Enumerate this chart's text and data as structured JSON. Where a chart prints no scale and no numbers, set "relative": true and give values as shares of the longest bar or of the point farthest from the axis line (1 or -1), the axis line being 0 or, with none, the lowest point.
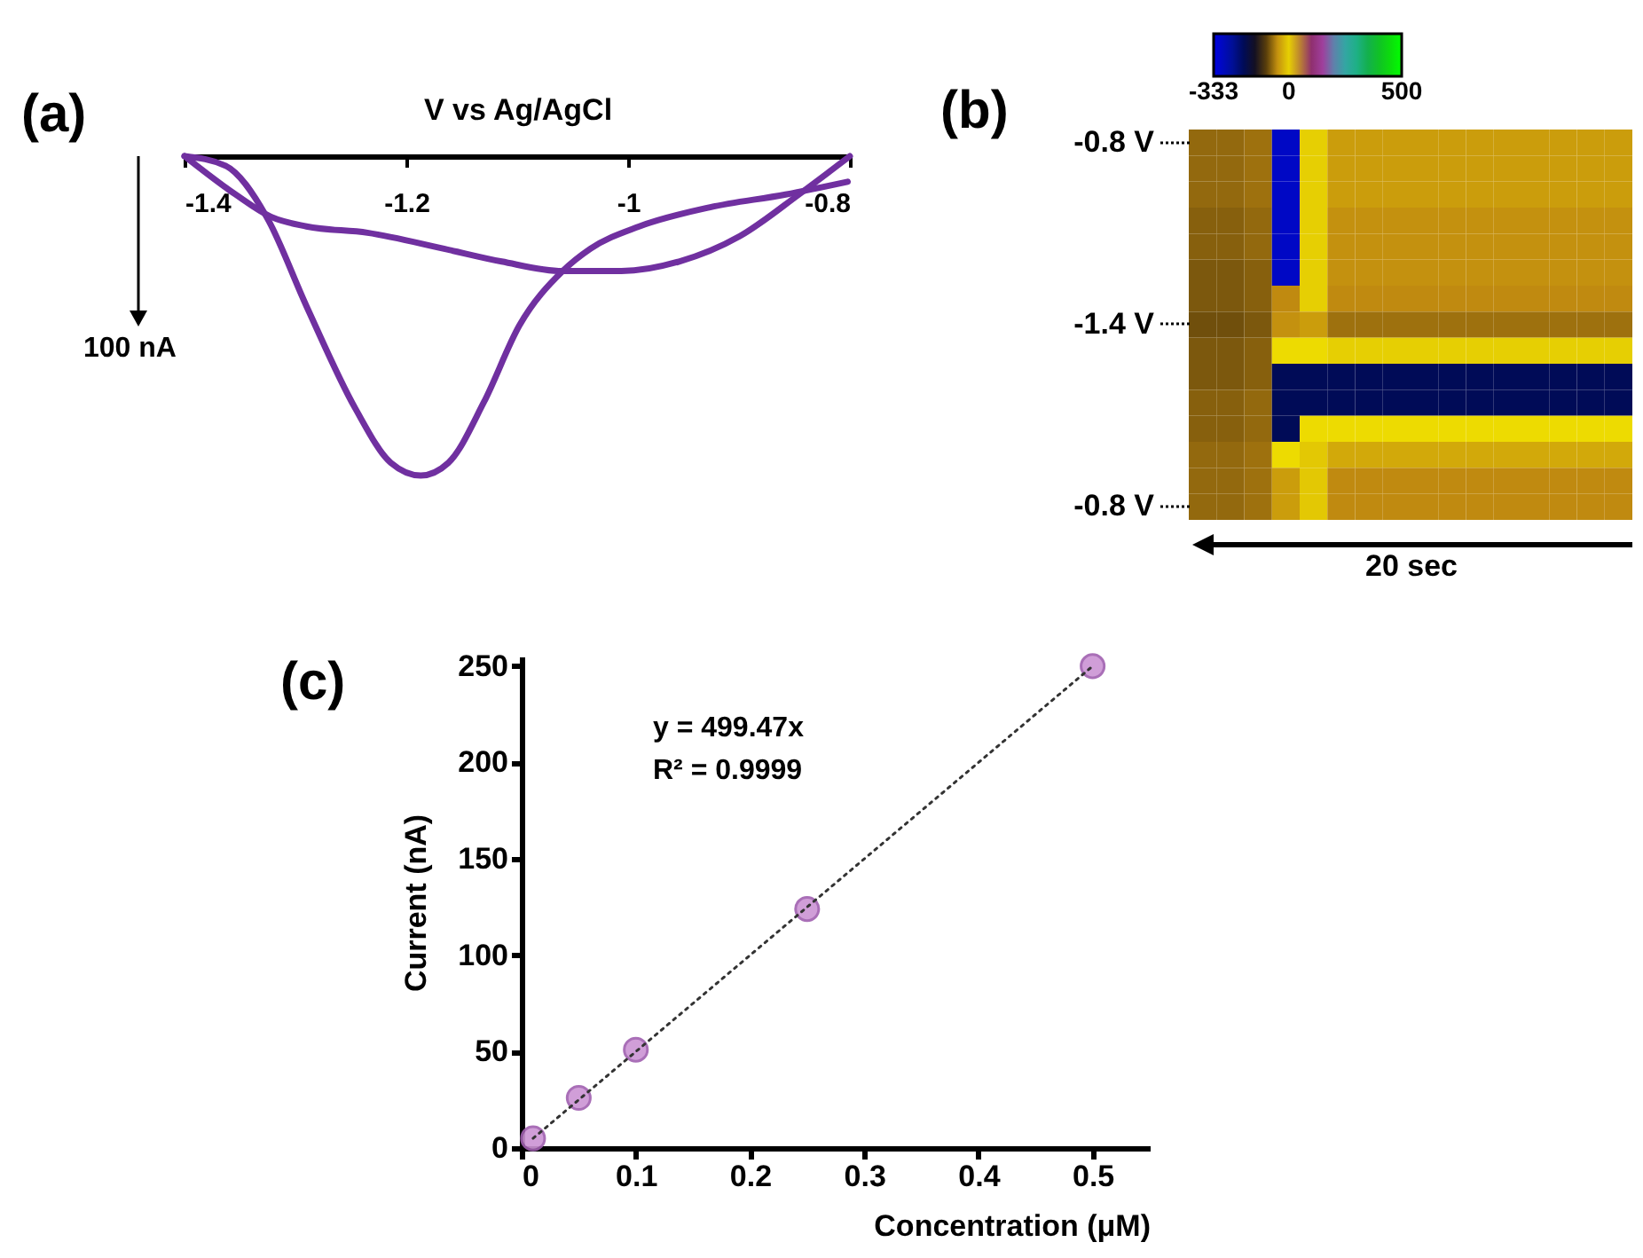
{
  "chart_data": [
    {
      "type": "line",
      "title": "(a)",
      "xlabel": "V vs Ag/AgCl",
      "relative": true,
      "xlim": [
        -1.4,
        -0.8
      ],
      "xticks": [
        -1.4,
        -1.2,
        -1,
        -0.8
      ],
      "annotations": [
        "100 nA"
      ],
      "series": [
        {
          "color": "#7030a0",
          "x": [
            -1.4,
            -1.363,
            -1.326,
            -1.29,
            -1.246,
            -1.214,
            -1.187,
            -1.162,
            -1.13,
            -1.098,
            -1.059,
            -1.034,
            -0.99,
            -0.926,
            -0.858,
            -0.802
          ],
          "values": [
            0,
            -0.03,
            -0.19,
            -0.47,
            -0.79,
            -0.96,
            -1,
            -0.96,
            -0.77,
            -0.53,
            -0.36,
            -0.29,
            -0.22,
            -0.16,
            -0.12,
            -0.08
          ]
        },
        {
          "color": "#7030a0",
          "x": [
            -1.4,
            -1.354,
            -1.322,
            -1.29,
            -1.235,
            -1.166,
            -1.114,
            -1.059,
            -1.006,
            -0.954,
            -0.899,
            -0.846,
            -0.819,
            -0.8
          ],
          "values": [
            0,
            -0.12,
            -0.19,
            -0.22,
            -0.24,
            -0.29,
            -0.33,
            -0.36,
            -0.36,
            -0.33,
            -0.25,
            -0.12,
            -0.05,
            0
          ]
        }
      ]
    },
    {
      "type": "heatmap",
      "title": "(b)",
      "xlabel": "20 sec",
      "clim": [
        -333,
        500
      ],
      "cticks": [
        -333,
        0,
        500
      ],
      "categories": [
        null,
        null,
        null,
        null,
        null,
        null,
        null,
        null,
        null,
        null,
        null,
        null,
        null,
        null,
        null,
        null
      ],
      "y_categories": [
        "-0.8 V",
        null,
        null,
        null,
        null,
        null,
        null,
        "-1.4 V",
        null,
        null,
        null,
        null,
        null,
        null,
        "-0.8 V"
      ],
      "cells": [
        [
          -75,
          -75,
          -70,
          -300,
          0,
          -40,
          -40,
          -40,
          -40,
          -40,
          -40,
          -40,
          -40,
          -40,
          -40,
          -40
        ],
        [
          -75,
          -75,
          -70,
          -300,
          0,
          -40,
          -40,
          -40,
          -40,
          -40,
          -40,
          -40,
          -40,
          -40,
          -40,
          -40
        ],
        [
          -75,
          -75,
          -70,
          -300,
          0,
          -40,
          -40,
          -40,
          -40,
          -40,
          -40,
          -40,
          -40,
          -40,
          -40,
          -40
        ],
        [
          -80,
          -80,
          -75,
          -300,
          0,
          -50,
          -50,
          -50,
          -50,
          -50,
          -50,
          -50,
          -50,
          -50,
          -50,
          -50
        ],
        [
          -80,
          -80,
          -75,
          -300,
          0,
          -50,
          -50,
          -50,
          -50,
          -50,
          -50,
          -50,
          -50,
          -50,
          -50,
          -50
        ],
        [
          -85,
          -85,
          -80,
          -300,
          0,
          -50,
          -50,
          -50,
          -50,
          -50,
          -50,
          -50,
          -50,
          -50,
          -50,
          -50
        ],
        [
          -85,
          -85,
          -80,
          -55,
          0,
          -55,
          -55,
          -55,
          -55,
          -55,
          -55,
          -55,
          -55,
          -55,
          -55,
          -55
        ],
        [
          -90,
          -90,
          -85,
          -50,
          -40,
          -70,
          -70,
          -70,
          -70,
          -70,
          -70,
          -70,
          -70,
          -70,
          -70,
          -70
        ],
        [
          -85,
          -85,
          -80,
          10,
          10,
          0,
          0,
          0,
          0,
          0,
          0,
          0,
          0,
          0,
          0,
          0
        ],
        [
          -85,
          -85,
          -80,
          -200,
          -200,
          -200,
          -200,
          -200,
          -200,
          -200,
          -200,
          -200,
          -200,
          -200,
          -200,
          -200
        ],
        [
          -80,
          -80,
          -75,
          -200,
          -200,
          -200,
          -200,
          -200,
          -200,
          -200,
          -200,
          -200,
          -200,
          -200,
          -200,
          -200
        ],
        [
          -80,
          -80,
          -75,
          -200,
          10,
          10,
          10,
          10,
          10,
          10,
          10,
          10,
          10,
          10,
          10,
          10
        ],
        [
          -75,
          -75,
          -70,
          10,
          -5,
          -30,
          -30,
          -30,
          -30,
          -30,
          -30,
          -30,
          -30,
          -30,
          -30,
          -30
        ],
        [
          -75,
          -75,
          -70,
          -40,
          -5,
          -55,
          -55,
          -55,
          -55,
          -55,
          -55,
          -55,
          -55,
          -55,
          -55,
          -55
        ],
        [
          -75,
          -75,
          -70,
          -40,
          -5,
          -55,
          -55,
          -55,
          -55,
          -55,
          -55,
          -55,
          -55,
          -55,
          -55,
          -55
        ]
      ]
    },
    {
      "type": "scatter",
      "title": "(c)",
      "xlabel": "Concentration (μM)",
      "ylabel": "Current (nA)",
      "xlim": [
        0,
        0.55
      ],
      "xticks": [
        0,
        0.1,
        0.2,
        0.3,
        0.4,
        0.5
      ],
      "ylim": [
        0,
        255
      ],
      "yticks": [
        0,
        50,
        100,
        150,
        200,
        250
      ],
      "annotations": [
        "y = 499.47x",
        "R² = 0.9999"
      ],
      "series": [
        {
          "color": "#cc94d4",
          "marker": "circle",
          "x": [
            0.01,
            0.05,
            0.1,
            0.25,
            0.5
          ],
          "values": [
            5,
            26,
            51,
            124,
            250
          ]
        },
        {
          "type": "line",
          "color": "#333333",
          "line_style": "dotted",
          "marker": "none",
          "x": [
            0.01,
            0.5
          ],
          "values": [
            5,
            250
          ]
        }
      ]
    }
  ]
}
